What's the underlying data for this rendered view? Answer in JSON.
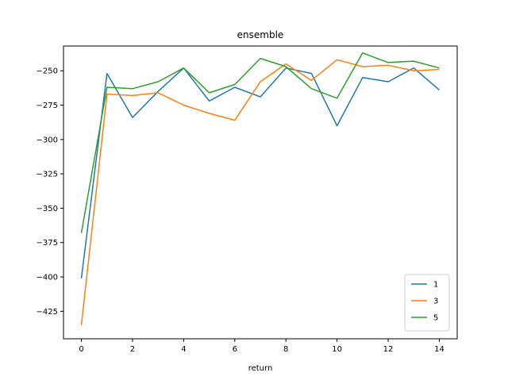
{
  "chart_data": {
    "type": "line",
    "title": "ensemble",
    "xlabel": "return",
    "ylabel": "",
    "xlim": [
      -0.7,
      14.7
    ],
    "ylim": [
      -445,
      -232
    ],
    "xticks": [
      0,
      2,
      4,
      6,
      8,
      10,
      12,
      14
    ],
    "yticks": [
      -425,
      -400,
      -375,
      -350,
      -325,
      -300,
      -275,
      -250
    ],
    "grid": false,
    "legend_position": "lower-right",
    "x": [
      0,
      1,
      2,
      3,
      4,
      5,
      6,
      7,
      8,
      9,
      10,
      11,
      12,
      13,
      14
    ],
    "series": [
      {
        "name": "1",
        "color": "#1f77b4",
        "values": [
          -401,
          -252,
          -284,
          -265,
          -248,
          -272,
          -262,
          -269,
          -248,
          -252,
          -290,
          -255,
          -258,
          -248,
          -264
        ]
      },
      {
        "name": "3",
        "color": "#ff7f0e",
        "values": [
          -435,
          -267,
          -268,
          -266,
          -275,
          -281,
          -286,
          -258,
          -245,
          -257,
          -242,
          -247,
          -246,
          -250,
          -249
        ]
      },
      {
        "name": "5",
        "color": "#2ca02c",
        "values": [
          -368,
          -262,
          -263,
          -258,
          -248,
          -266,
          -260,
          -241,
          -247,
          -263,
          -270,
          -237,
          -244,
          -243,
          -248
        ]
      }
    ]
  }
}
